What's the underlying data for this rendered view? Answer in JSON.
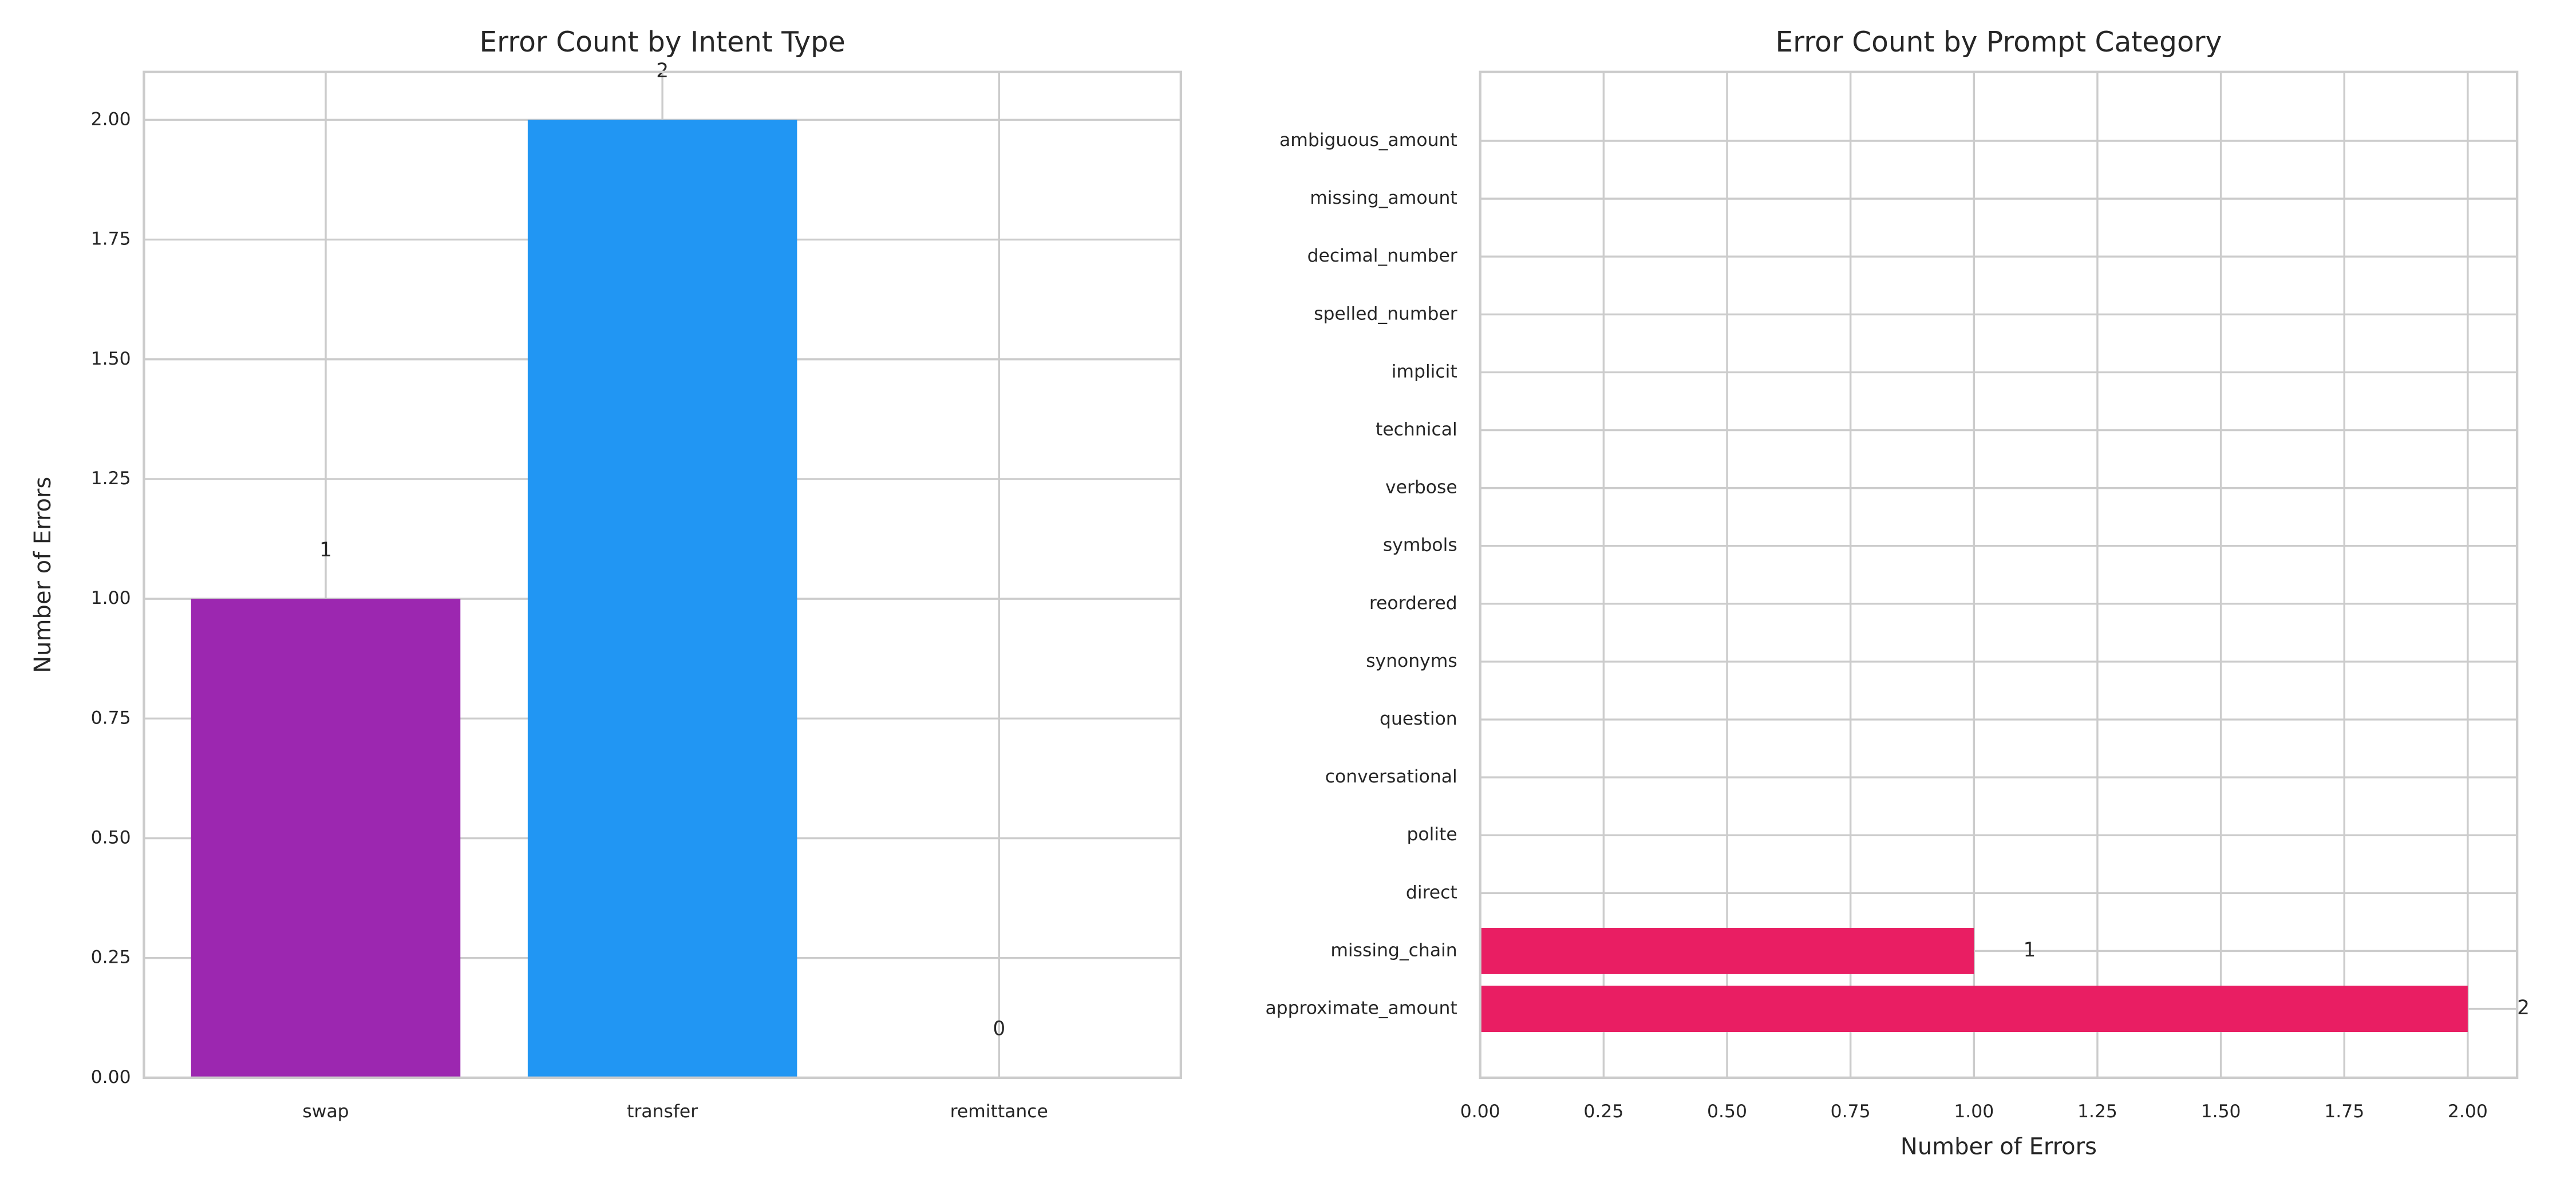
{
  "chart_data": [
    {
      "type": "bar",
      "title": "Error Count by Intent Type",
      "ylabel": "Number of Errors",
      "categories": [
        "swap",
        "transfer",
        "remittance"
      ],
      "values": [
        1,
        2,
        0
      ],
      "colors": [
        "#9c27b0",
        "#2196f3",
        "#4caf50"
      ],
      "ylim": [
        0,
        2.1
      ],
      "yticks": [
        {
          "value": 0,
          "label": "0.00"
        },
        {
          "value": 0.25,
          "label": "0.25"
        },
        {
          "value": 0.5,
          "label": "0.50"
        },
        {
          "value": 0.75,
          "label": "0.75"
        },
        {
          "value": 1,
          "label": "1.00"
        },
        {
          "value": 1.25,
          "label": "1.25"
        },
        {
          "value": 1.5,
          "label": "1.50"
        },
        {
          "value": 1.75,
          "label": "1.75"
        },
        {
          "value": 2,
          "label": "2.00"
        }
      ],
      "grid": true
    },
    {
      "type": "barh",
      "title": "Error Count by Prompt Category",
      "xlabel": "Number of Errors",
      "categories": [
        "approximate_amount",
        "missing_chain",
        "direct",
        "polite",
        "conversational",
        "question",
        "synonyms",
        "reordered",
        "symbols",
        "verbose",
        "technical",
        "implicit",
        "spelled_number",
        "decimal_number",
        "missing_amount",
        "ambiguous_amount"
      ],
      "values": [
        2,
        1,
        0,
        0,
        0,
        0,
        0,
        0,
        0,
        0,
        0,
        0,
        0,
        0,
        0,
        0
      ],
      "color": "#e91e63",
      "xlim": [
        0,
        2.1
      ],
      "xticks": [
        {
          "value": 0,
          "label": "0.00"
        },
        {
          "value": 0.25,
          "label": "0.25"
        },
        {
          "value": 0.5,
          "label": "0.50"
        },
        {
          "value": 0.75,
          "label": "0.75"
        },
        {
          "value": 1,
          "label": "1.00"
        },
        {
          "value": 1.25,
          "label": "1.25"
        },
        {
          "value": 1.5,
          "label": "1.50"
        },
        {
          "value": 1.75,
          "label": "1.75"
        },
        {
          "value": 2,
          "label": "2.00"
        }
      ],
      "grid": true
    }
  ]
}
